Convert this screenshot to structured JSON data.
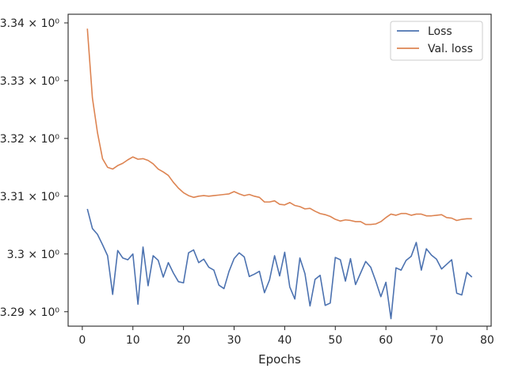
{
  "chart_data": {
    "type": "line",
    "title": "",
    "xlabel": "Epochs",
    "ylabel": "",
    "xlim": [
      -2.8,
      80.8
    ],
    "ylim": [
      3.2875,
      3.3415
    ],
    "grid": false,
    "legend_position": "top-right",
    "x_ticks": [
      0,
      10,
      20,
      30,
      40,
      50,
      60,
      70,
      80
    ],
    "x_tick_labels": [
      "0",
      "10",
      "20",
      "30",
      "40",
      "50",
      "60",
      "70",
      "80"
    ],
    "y_ticks": [
      3.29,
      3.3,
      3.31,
      3.32,
      3.33,
      3.34
    ],
    "y_tick_labels": [
      "3.29 × 10⁰",
      "3.3 × 10⁰",
      "3.31 × 10⁰",
      "3.32 × 10⁰",
      "3.33 × 10⁰",
      "3.34 × 10⁰"
    ],
    "x": [
      1,
      2,
      3,
      4,
      5,
      6,
      7,
      8,
      9,
      10,
      11,
      12,
      13,
      14,
      15,
      16,
      17,
      18,
      19,
      20,
      21,
      22,
      23,
      24,
      25,
      26,
      27,
      28,
      29,
      30,
      31,
      32,
      33,
      34,
      35,
      36,
      37,
      38,
      39,
      40,
      41,
      42,
      43,
      44,
      45,
      46,
      47,
      48,
      49,
      50,
      51,
      52,
      53,
      54,
      55,
      56,
      57,
      58,
      59,
      60,
      61,
      62,
      63,
      64,
      65,
      66,
      67,
      68,
      69,
      70,
      71,
      72,
      73,
      74,
      75,
      76,
      77
    ],
    "series": [
      {
        "name": "Loss",
        "color": "#4c72b0",
        "values": [
          3.3078,
          3.3044,
          3.3034,
          3.3016,
          3.2997,
          3.293,
          3.3006,
          3.2993,
          3.299,
          3.3,
          3.2913,
          3.3012,
          3.2945,
          3.2997,
          3.2989,
          3.296,
          3.2985,
          3.2967,
          3.2952,
          3.295,
          3.3002,
          3.3007,
          3.2985,
          3.2991,
          3.2977,
          3.2972,
          3.2946,
          3.294,
          3.297,
          3.2992,
          3.3002,
          3.2995,
          3.2961,
          3.2965,
          3.297,
          3.2933,
          3.2955,
          3.2997,
          3.2962,
          3.3003,
          3.2943,
          3.2922,
          3.2993,
          3.2966,
          3.291,
          3.2956,
          3.2963,
          3.2911,
          3.2915,
          3.2994,
          3.299,
          3.2953,
          3.2992,
          3.2947,
          3.2967,
          3.2987,
          3.2977,
          3.2953,
          3.2926,
          3.2951,
          3.2888,
          3.2976,
          3.2972,
          3.2989,
          3.2996,
          3.302,
          3.2972,
          3.3009,
          3.2998,
          3.2991,
          3.2974,
          3.2982,
          3.299,
          3.2932,
          3.2929,
          3.2968,
          3.296
        ]
      },
      {
        "name": "Val. loss",
        "color": "#dd8452",
        "values": [
          3.339,
          3.327,
          3.321,
          3.3165,
          3.315,
          3.3147,
          3.3153,
          3.3157,
          3.3163,
          3.3168,
          3.3164,
          3.3165,
          3.3162,
          3.3156,
          3.3147,
          3.3142,
          3.3136,
          3.3124,
          3.3114,
          3.3106,
          3.3101,
          3.3098,
          3.31,
          3.3101,
          3.31,
          3.3101,
          3.3102,
          3.3103,
          3.3104,
          3.3108,
          3.3104,
          3.3101,
          3.3103,
          3.31,
          3.3098,
          3.309,
          3.309,
          3.3092,
          3.3086,
          3.3085,
          3.3089,
          3.3084,
          3.3082,
          3.3078,
          3.3079,
          3.3074,
          3.307,
          3.3068,
          3.3065,
          3.306,
          3.3057,
          3.3059,
          3.3058,
          3.3056,
          3.3056,
          3.3051,
          3.3051,
          3.3052,
          3.3056,
          3.3063,
          3.3069,
          3.3067,
          3.307,
          3.307,
          3.3067,
          3.3069,
          3.3069,
          3.3066,
          3.3066,
          3.3067,
          3.3068,
          3.3063,
          3.3062,
          3.3058,
          3.306,
          3.3061,
          3.3061
        ]
      }
    ]
  }
}
